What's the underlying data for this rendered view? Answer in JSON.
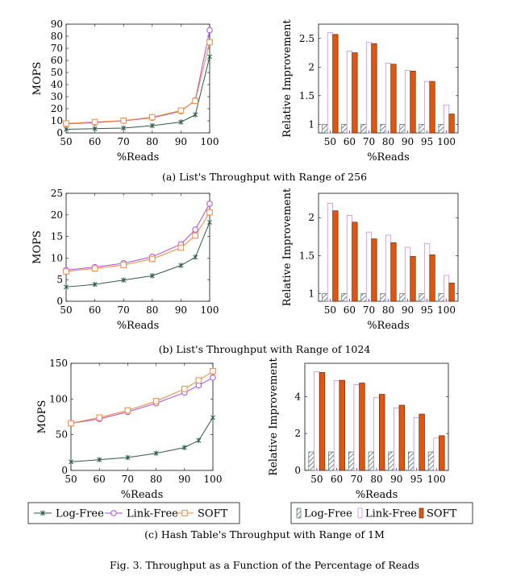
{
  "figure_caption": "Fig. 3.  Throughput as a Function of the Percentage of Reads",
  "subcaptions": [
    "(a) List's Throughput with Range of 256",
    "(b) List's Throughput with Range of 1024",
    "(c) Hash Table's Throughput with Range of 1M"
  ],
  "legend": {
    "line": [
      "Log-Free",
      "Link-Free",
      "SOFT"
    ],
    "bar": [
      "Log-Free",
      "Link-Free",
      "SOFT"
    ]
  },
  "colors": {
    "logfree": "#2f5a4a",
    "linkfree": "#b048e0",
    "soft": "#f0883a",
    "soft_bar": "#e0560e",
    "linkfree_bar": "#c77be8",
    "logfree_bar": "#4d6b60"
  },
  "chart_data": [
    {
      "type": "line",
      "id": "a-line",
      "xlabel": "%Reads",
      "ylabel": "MOPS",
      "x": [
        50,
        60,
        70,
        80,
        90,
        95,
        100
      ],
      "xticks": [
        50,
        60,
        70,
        80,
        90,
        100
      ],
      "ylim": [
        0,
        90
      ],
      "yticks": [
        0,
        10,
        20,
        30,
        40,
        50,
        60,
        70,
        80,
        90
      ],
      "series": [
        {
          "name": "Log-Free",
          "values": [
            3,
            3.5,
            4,
            6,
            9,
            15,
            63
          ]
        },
        {
          "name": "Link-Free",
          "values": [
            7.5,
            8.5,
            10,
            12.5,
            18,
            27,
            85
          ]
        },
        {
          "name": "SOFT",
          "values": [
            7.8,
            9,
            10.2,
            13,
            18.5,
            26.5,
            75
          ]
        }
      ]
    },
    {
      "type": "bar",
      "id": "a-bar",
      "xlabel": "%Reads",
      "ylabel": "Relative Improvement",
      "categories": [
        "50",
        "60",
        "70",
        "80",
        "90",
        "95",
        "100"
      ],
      "ylim": [
        0.85,
        2.75
      ],
      "yticks": [
        "1",
        "1.5",
        "2",
        "2.5"
      ],
      "series": [
        {
          "name": "Log-Free",
          "values": [
            1,
            1,
            1,
            1,
            1,
            1,
            1
          ]
        },
        {
          "name": "Link-Free",
          "values": [
            2.6,
            2.28,
            2.43,
            2.07,
            1.94,
            1.75,
            1.34
          ]
        },
        {
          "name": "SOFT",
          "values": [
            2.57,
            2.25,
            2.41,
            2.05,
            1.93,
            1.75,
            1.18
          ]
        }
      ]
    },
    {
      "type": "line",
      "id": "b-line",
      "xlabel": "%Reads",
      "ylabel": "MOPS",
      "x": [
        50,
        60,
        70,
        80,
        90,
        95,
        100
      ],
      "xticks": [
        50,
        60,
        70,
        80,
        90,
        100
      ],
      "ylim": [
        0,
        25
      ],
      "yticks": [
        0,
        5,
        10,
        15,
        20,
        25
      ],
      "series": [
        {
          "name": "Log-Free",
          "values": [
            3.3,
            3.9,
            4.9,
            5.9,
            8.3,
            10.2,
            18.3
          ]
        },
        {
          "name": "Link-Free",
          "values": [
            7.2,
            7.9,
            8.8,
            10.3,
            13.2,
            16.6,
            22.6
          ]
        },
        {
          "name": "SOFT",
          "values": [
            6.9,
            7.6,
            8.4,
            9.8,
            12.4,
            15.2,
            20.6
          ]
        }
      ]
    },
    {
      "type": "bar",
      "id": "b-bar",
      "xlabel": "%Reads",
      "ylabel": "Relative Improvement",
      "categories": [
        "50",
        "60",
        "70",
        "80",
        "90",
        "95",
        "100"
      ],
      "ylim": [
        0.9,
        2.32
      ],
      "yticks": [
        "1",
        "1.5",
        "2"
      ],
      "series": [
        {
          "name": "Log-Free",
          "values": [
            1,
            1,
            1,
            1,
            1,
            1,
            1
          ]
        },
        {
          "name": "Link-Free",
          "values": [
            2.19,
            2.03,
            1.81,
            1.77,
            1.61,
            1.66,
            1.24
          ]
        },
        {
          "name": "SOFT",
          "values": [
            2.09,
            1.94,
            1.72,
            1.67,
            1.49,
            1.51,
            1.14
          ]
        }
      ]
    },
    {
      "type": "line",
      "id": "c-line",
      "xlabel": "%Reads",
      "ylabel": "MOPS",
      "x": [
        50,
        60,
        70,
        80,
        90,
        95,
        100
      ],
      "xticks": [
        50,
        60,
        70,
        80,
        90,
        100
      ],
      "ylim": [
        0,
        150
      ],
      "yticks": [
        0,
        50,
        100,
        150
      ],
      "series": [
        {
          "name": "Log-Free",
          "values": [
            12,
            15,
            18,
            24,
            32,
            42,
            74
          ]
        },
        {
          "name": "Link-Free",
          "values": [
            66,
            72,
            82,
            94,
            109,
            119,
            130
          ]
        },
        {
          "name": "SOFT",
          "values": [
            66,
            74,
            84,
            97,
            114,
            126,
            139
          ]
        }
      ]
    },
    {
      "type": "bar",
      "id": "c-bar",
      "xlabel": "%Reads",
      "ylabel": "Relative Improvement",
      "categories": [
        "50",
        "60",
        "70",
        "80",
        "90",
        "95",
        "100"
      ],
      "ylim": [
        0,
        5.8
      ],
      "yticks": [
        "0",
        "2",
        "4"
      ],
      "series": [
        {
          "name": "Log-Free",
          "values": [
            1,
            1,
            1,
            1,
            1,
            1,
            1
          ]
        },
        {
          "name": "Link-Free",
          "values": [
            5.35,
            4.87,
            4.65,
            3.95,
            3.38,
            2.85,
            1.75
          ]
        },
        {
          "name": "SOFT",
          "values": [
            5.3,
            4.88,
            4.73,
            4.12,
            3.53,
            3.05,
            1.88
          ]
        }
      ]
    }
  ]
}
